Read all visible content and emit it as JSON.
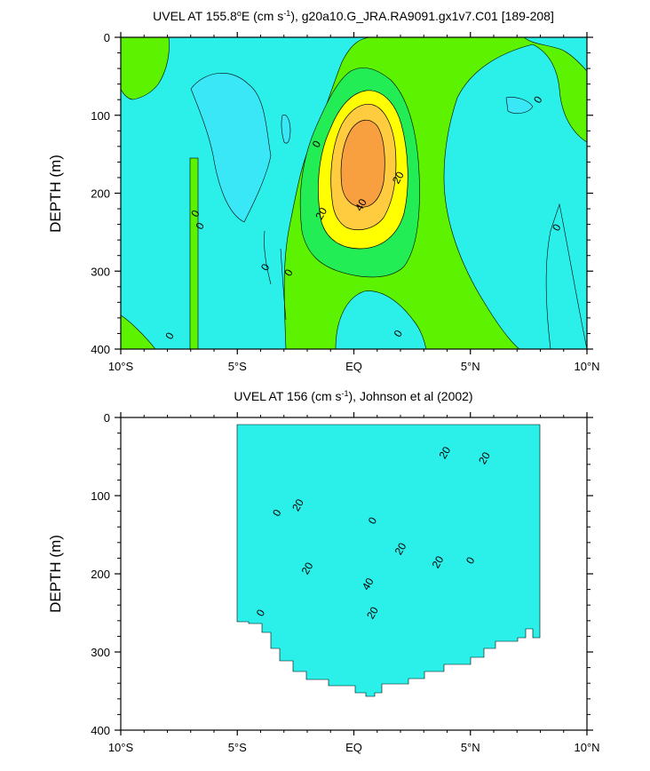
{
  "colors": {
    "cyan_neg": "#2bf0e9",
    "cyan_dark": "#39e7f7",
    "green_pale": "#52f0a0",
    "green_0_10": "#23ed55",
    "green_bright": "#5cf200",
    "yellow_20": "#ffff00",
    "gold_30": "#ffcc40",
    "orange_40": "#f8a040"
  },
  "chart_data": [
    {
      "type": "contour",
      "title_main": "UVEL AT 155.8",
      "title_deg": "o",
      "title_unit": "E (cm s",
      "title_exp": "-1",
      "title_rest": "), g20a10.G_JRA.RA9091.gx1v7.C01 [189-208]",
      "ylabel": "DEPTH (m)",
      "x_ticks": [
        -10,
        -5,
        0,
        5,
        10
      ],
      "x_tick_labels": [
        "10°S",
        "5°S",
        "EQ",
        "5°N",
        "10°N"
      ],
      "y_ticks": [
        0,
        100,
        200,
        300,
        400
      ],
      "y_tick_labels": [
        "0",
        "100",
        "200",
        "300",
        "400"
      ],
      "xlim": [
        -10,
        10
      ],
      "ylim": [
        400,
        0
      ],
      "contour_labels": [
        {
          "text": "0",
          "lat": -7.9,
          "depth": 383
        },
        {
          "text": "0",
          "lat": -6.8,
          "depth": 226
        },
        {
          "text": "0",
          "lat": -6.6,
          "depth": 242
        },
        {
          "text": "0",
          "lat": -3.8,
          "depth": 295
        },
        {
          "text": "0",
          "lat": -2.8,
          "depth": 302
        },
        {
          "text": "0",
          "lat": -1.6,
          "depth": 137
        },
        {
          "text": "20",
          "lat": -1.4,
          "depth": 226
        },
        {
          "text": "40",
          "lat": 0.3,
          "depth": 215
        },
        {
          "text": "20",
          "lat": 1.9,
          "depth": 180
        },
        {
          "text": "0",
          "lat": 1.9,
          "depth": 380
        },
        {
          "text": "0",
          "lat": 7.9,
          "depth": 80
        },
        {
          "text": "0",
          "lat": 8.7,
          "depth": 244
        }
      ]
    },
    {
      "type": "contour",
      "title_main": "UVEL AT 156 (cm s",
      "title_exp": "-1",
      "title_rest": "), Johnson et al (2002)",
      "ylabel": "DEPTH (m)",
      "x_ticks": [
        -10,
        -5,
        0,
        5,
        10
      ],
      "x_tick_labels": [
        "10°S",
        "5°S",
        "EQ",
        "5°N",
        "10°N"
      ],
      "y_ticks": [
        0,
        100,
        200,
        300,
        400
      ],
      "y_tick_labels": [
        "0",
        "100",
        "200",
        "300",
        "400"
      ],
      "xlim": [
        -10,
        10
      ],
      "ylim": [
        400,
        0
      ],
      "contour_labels": [
        {
          "text": "0",
          "lat": -3.3,
          "depth": 122
        },
        {
          "text": "20",
          "lat": -2.4,
          "depth": 112
        },
        {
          "text": "0",
          "lat": 0.8,
          "depth": 132
        },
        {
          "text": "20",
          "lat": 3.9,
          "depth": 45
        },
        {
          "text": "20",
          "lat": 5.6,
          "depth": 52
        },
        {
          "text": "20",
          "lat": 2.0,
          "depth": 168
        },
        {
          "text": "20",
          "lat": -2.0,
          "depth": 193
        },
        {
          "text": "40",
          "lat": 0.6,
          "depth": 213
        },
        {
          "text": "20",
          "lat": 3.6,
          "depth": 185
        },
        {
          "text": "0",
          "lat": 5.0,
          "depth": 183
        },
        {
          "text": "20",
          "lat": 0.8,
          "depth": 250
        },
        {
          "text": "0",
          "lat": -4.0,
          "depth": 250
        }
      ]
    }
  ]
}
